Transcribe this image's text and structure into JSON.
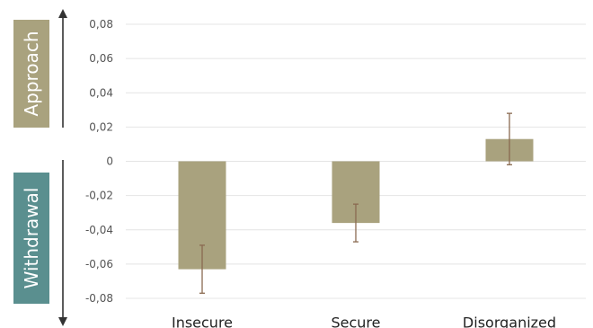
{
  "chart_data": {
    "type": "bar",
    "categories": [
      "Insecure",
      "Secure",
      "Disorganized"
    ],
    "values": [
      -0.063,
      -0.036,
      0.013
    ],
    "error_bars": [
      {
        "low": -0.077,
        "high": -0.049
      },
      {
        "low": -0.047,
        "high": -0.025
      },
      {
        "low": -0.002,
        "high": 0.028
      }
    ],
    "title": "",
    "xlabel": "",
    "ylabel": "",
    "ylim": [
      -0.08,
      0.08
    ],
    "yticks": [
      0.08,
      0.06,
      0.04,
      0.02,
      0,
      -0.02,
      -0.04,
      -0.06,
      -0.08
    ],
    "ytick_labels": [
      "0,08",
      "0,06",
      "0,04",
      "0,02",
      "0",
      "-0,02",
      "-0,04",
      "-0,06",
      "-0,08"
    ],
    "grid": true,
    "bar_color": "#a9a27e",
    "error_color": "#8a6a50",
    "side_labels": {
      "approach": {
        "text": "Approach",
        "color": "#a9a27e"
      },
      "withdrawal": {
        "text": "Withdrawal",
        "color": "#5a8f8f"
      }
    }
  }
}
